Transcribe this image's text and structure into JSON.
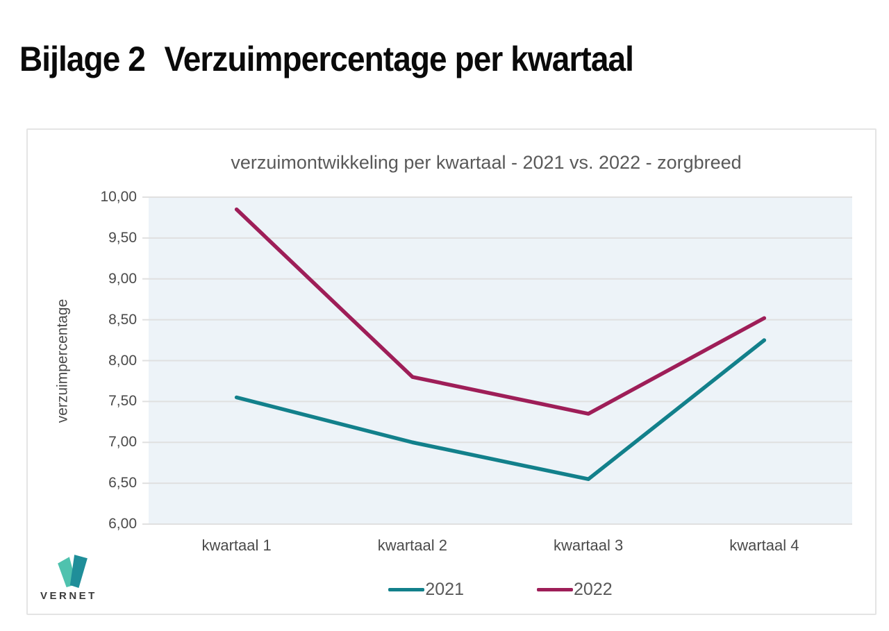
{
  "page": {
    "heading": {
      "prefix": "Bijlage 2",
      "title": "Verzuimpercentage per kwartaal"
    }
  },
  "chart_data": {
    "type": "line",
    "title": "verzuimontwikkeling per kwartaal - 2021 vs. 2022 - zorgbreed",
    "ylabel": "verzuimpercentage",
    "xlabel": "",
    "categories": [
      "kwartaal 1",
      "kwartaal 2",
      "kwartaal 3",
      "kwartaal 4"
    ],
    "series": [
      {
        "name": "2021",
        "color": "#12808B",
        "values": [
          7.55,
          7.0,
          6.55,
          8.25
        ]
      },
      {
        "name": "2022",
        "color": "#9E1E58",
        "values": [
          9.85,
          7.8,
          7.35,
          8.52
        ]
      }
    ],
    "ylim": [
      6,
      10
    ],
    "ytick_step": 0.5,
    "ytick_labels": [
      "6,00",
      "6,50",
      "7,00",
      "7,50",
      "8,00",
      "8,50",
      "9,00",
      "9,50",
      "10,00"
    ],
    "grid": true,
    "legend_position": "bottom",
    "plot_bg": "#EDF3F8",
    "gridline_color": "#E0E0E0"
  },
  "logo": {
    "text": "VERNET",
    "colors": {
      "light_teal": "#4FC2AE",
      "dark_teal": "#1F8E99",
      "text": "#3B3B3B"
    }
  }
}
